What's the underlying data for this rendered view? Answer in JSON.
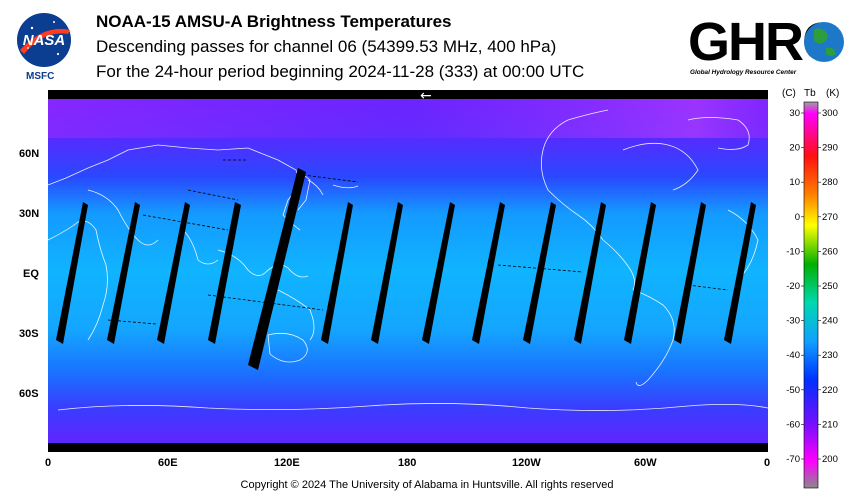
{
  "header": {
    "title": "NOAA-15 AMSU-A Brightness Temperatures",
    "subtitle_channel": "Descending passes for channel 06 (54399.53 MHz, 400 hPa)",
    "subtitle_period": "For the 24-hour period beginning 2024-11-28 (333) at 00:00 UTC"
  },
  "logos": {
    "left": {
      "name": "NASA",
      "caption": "MSFC"
    },
    "right": {
      "name": "GHRC",
      "caption": "Global Hydrology Resource Center"
    }
  },
  "map": {
    "projection": "equirectangular",
    "lon_range": [
      0,
      360
    ],
    "lat_range": [
      -90,
      90
    ],
    "lat_labels": [
      "60N",
      "30N",
      "EQ",
      "30S",
      "60S"
    ],
    "lon_labels": [
      "0",
      "60E",
      "120E",
      "180",
      "120W",
      "60W",
      "0"
    ],
    "dateline_arrow": "←",
    "gap_color": "#000000",
    "coastline_color": "#ffffff"
  },
  "colorbar": {
    "unit_labels": [
      "(C)",
      "Tb",
      "(K)"
    ],
    "celsius_ticks": [
      "30",
      "20",
      "10",
      "0",
      "-10",
      "-20",
      "-30",
      "-40",
      "-50",
      "-60",
      "-70"
    ],
    "kelvin_ticks": [
      "300",
      "290",
      "280",
      "270",
      "260",
      "250",
      "240",
      "230",
      "220",
      "210",
      "200"
    ],
    "range_K": [
      195,
      305
    ],
    "colors": [
      "#8b8b8b",
      "#ff00ff",
      "#ff2020",
      "#ff8000",
      "#ffff00",
      "#00c000",
      "#00e0c0",
      "#00a0ff",
      "#0030ff",
      "#8000ff",
      "#ff00ff",
      "#a0a0a0"
    ]
  },
  "footer": {
    "copyright": "Copyright © 2024 The University of Alabama in Huntsville.  All rights reserved"
  }
}
